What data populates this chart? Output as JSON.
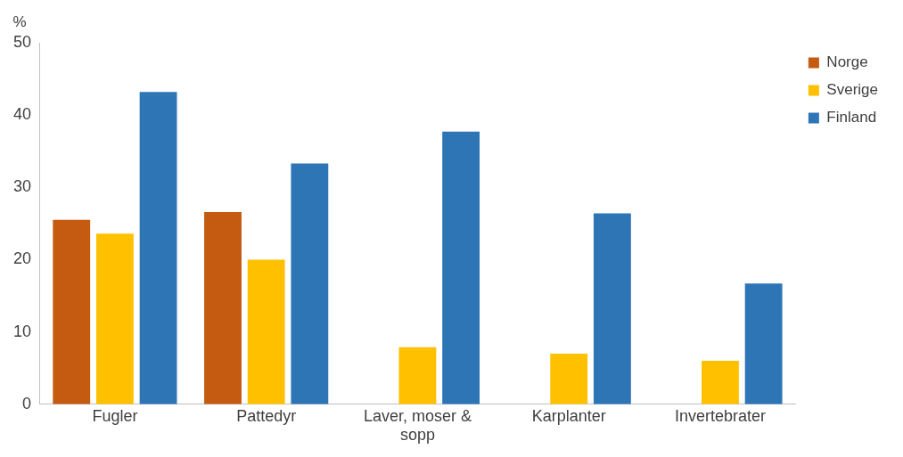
{
  "chart_data": {
    "type": "bar",
    "ylabel": "%",
    "categories": [
      "Fugler",
      "Pattedyr",
      "Laver, moser & sopp",
      "Karplanter",
      "Invertebrater"
    ],
    "series": [
      {
        "name": "Norge",
        "color": "#c55a11",
        "values": [
          25.5,
          26.6,
          null,
          null,
          null
        ]
      },
      {
        "name": "Sverige",
        "color": "#ffc000",
        "values": [
          23.6,
          20.0,
          7.9,
          7.0,
          6.0
        ]
      },
      {
        "name": "Finland",
        "color": "#2e75b6",
        "values": [
          43.2,
          33.3,
          37.7,
          26.4,
          16.7
        ]
      }
    ],
    "ylim": [
      0,
      50
    ],
    "yticks": [
      0,
      10,
      20,
      30,
      40,
      50
    ],
    "grid": false,
    "legend": "top right"
  }
}
